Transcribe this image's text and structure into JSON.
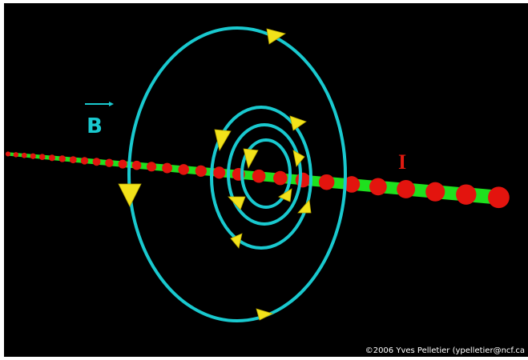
{
  "labels": {
    "b": "B",
    "i": "I"
  },
  "credit": "©2006 Yves Pelletier (ypelletier@ncf.ca"
}
